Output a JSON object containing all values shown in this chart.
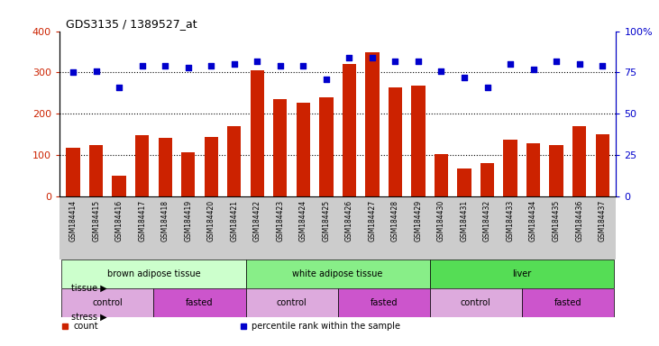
{
  "title": "GDS3135 / 1389527_at",
  "samples": [
    "GSM184414",
    "GSM184415",
    "GSM184416",
    "GSM184417",
    "GSM184418",
    "GSM184419",
    "GSM184420",
    "GSM184421",
    "GSM184422",
    "GSM184423",
    "GSM184424",
    "GSM184425",
    "GSM184426",
    "GSM184427",
    "GSM184428",
    "GSM184429",
    "GSM184430",
    "GSM184431",
    "GSM184432",
    "GSM184433",
    "GSM184434",
    "GSM184435",
    "GSM184436",
    "GSM184437"
  ],
  "counts": [
    118,
    125,
    50,
    148,
    143,
    107,
    145,
    170,
    305,
    235,
    228,
    240,
    320,
    348,
    265,
    268,
    103,
    68,
    80,
    138,
    130,
    125,
    170,
    150
  ],
  "percentile_ranks": [
    75,
    76,
    66,
    79,
    79,
    78,
    79,
    80,
    82,
    79,
    79,
    71,
    84,
    84,
    82,
    82,
    76,
    72,
    66,
    80,
    77,
    82,
    80,
    79
  ],
  "bar_color": "#cc2200",
  "dot_color": "#0000cc",
  "ylim_left": [
    0,
    400
  ],
  "ylim_right": [
    0,
    100
  ],
  "yticks_left": [
    0,
    100,
    200,
    300,
    400
  ],
  "yticks_right": [
    0,
    25,
    50,
    75,
    100
  ],
  "tissue_groups": [
    {
      "label": "brown adipose tissue",
      "start": 0,
      "end": 8,
      "color": "#ccffcc"
    },
    {
      "label": "white adipose tissue",
      "start": 8,
      "end": 16,
      "color": "#88ee88"
    },
    {
      "label": "liver",
      "start": 16,
      "end": 24,
      "color": "#55dd55"
    }
  ],
  "stress_groups": [
    {
      "label": "control",
      "start": 0,
      "end": 4,
      "color": "#ddaadd"
    },
    {
      "label": "fasted",
      "start": 4,
      "end": 8,
      "color": "#cc55cc"
    },
    {
      "label": "control",
      "start": 8,
      "end": 12,
      "color": "#ddaadd"
    },
    {
      "label": "fasted",
      "start": 12,
      "end": 16,
      "color": "#cc55cc"
    },
    {
      "label": "control",
      "start": 16,
      "end": 20,
      "color": "#ddaadd"
    },
    {
      "label": "fasted",
      "start": 20,
      "end": 24,
      "color": "#cc55cc"
    }
  ],
  "legend_items": [
    {
      "label": "count",
      "color": "#cc2200"
    },
    {
      "label": "percentile rank within the sample",
      "color": "#0000cc"
    }
  ],
  "chart_bg": "#ffffff",
  "xtick_bg": "#cccccc"
}
